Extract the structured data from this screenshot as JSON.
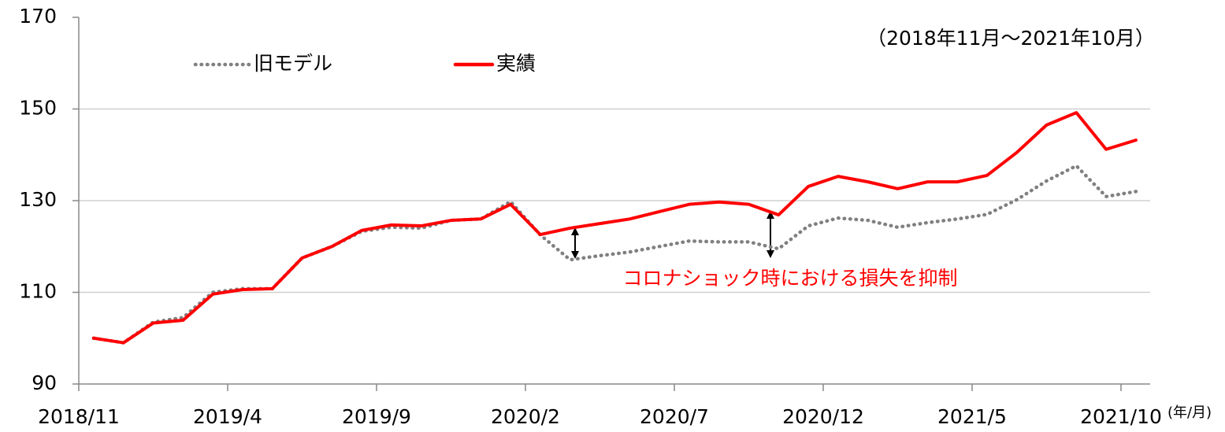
{
  "chart_data": {
    "type": "line",
    "subtitle": "（2018年11月～2021年10月）",
    "annotation": "コロナショック時における損失を抑制",
    "x_label": "(年/月)",
    "categories": [
      "2018/11",
      null,
      null,
      null,
      null,
      "2019/4",
      null,
      null,
      null,
      null,
      "2019/9",
      null,
      null,
      null,
      null,
      "2020/2",
      null,
      null,
      null,
      null,
      "2020/7",
      null,
      null,
      null,
      null,
      "2020/12",
      null,
      null,
      null,
      null,
      "2021/5",
      null,
      null,
      null,
      null,
      "2021/10"
    ],
    "series": [
      {
        "name": "旧モデル",
        "color": "#808080",
        "style": "dotted",
        "values": [
          100,
          99,
          103.5,
          104.5,
          110,
          110.8,
          110.8,
          117.5,
          120,
          123.3,
          124.2,
          124,
          125.7,
          126,
          129.8,
          122.5,
          117.1,
          118,
          118.8,
          120,
          121.2,
          121,
          121,
          119.5,
          124.5,
          126.2,
          125.7,
          124.2,
          125.2,
          126,
          127,
          130.2,
          134.3,
          137.6,
          130.9,
          132
        ]
      },
      {
        "name": "実績",
        "color": "#ff0000",
        "style": "solid",
        "values": [
          100,
          99,
          103.3,
          103.9,
          109.6,
          110.6,
          110.8,
          117.5,
          120,
          123.5,
          124.7,
          124.5,
          125.7,
          126,
          129.2,
          122.6,
          124,
          125,
          126,
          127.6,
          129.2,
          129.7,
          129.2,
          126.9,
          133.1,
          135.3,
          134.1,
          132.6,
          134.1,
          134.1,
          135.5,
          140.5,
          146.5,
          149.2,
          141.2,
          143.2
        ]
      }
    ],
    "ylim": [
      90,
      170
    ],
    "yticks": [
      90,
      110,
      130,
      150,
      170
    ],
    "grid": true
  }
}
